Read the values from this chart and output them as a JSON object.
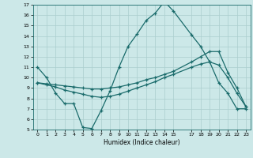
{
  "xlabel": "Humidex (Indice chaleur)",
  "bg_color": "#cce8e8",
  "line_color": "#1a6b6b",
  "grid_color": "#aacece",
  "ylim": [
    5,
    17
  ],
  "xlim": [
    -0.5,
    23.5
  ],
  "yticks": [
    5,
    6,
    7,
    8,
    9,
    10,
    11,
    12,
    13,
    14,
    15,
    16,
    17
  ],
  "xticks": [
    0,
    1,
    2,
    3,
    4,
    5,
    6,
    7,
    8,
    9,
    10,
    11,
    12,
    13,
    14,
    15,
    17,
    18,
    19,
    20,
    21,
    22,
    23
  ],
  "line1_x": [
    0,
    1,
    2,
    3,
    4,
    5,
    6,
    7,
    8,
    9,
    10,
    11,
    12,
    13,
    14,
    15,
    17,
    18,
    19,
    20,
    21,
    22,
    23
  ],
  "line1_y": [
    11.0,
    10.0,
    8.5,
    7.5,
    7.5,
    5.2,
    5.1,
    6.8,
    8.7,
    11.0,
    13.0,
    14.2,
    15.5,
    16.2,
    17.3,
    16.4,
    14.1,
    13.0,
    11.5,
    9.5,
    8.5,
    7.0,
    7.0
  ],
  "line2_x": [
    0,
    1,
    2,
    3,
    4,
    5,
    6,
    7,
    8,
    9,
    10,
    11,
    12,
    13,
    14,
    15,
    17,
    18,
    19,
    20,
    21,
    22,
    23
  ],
  "line2_y": [
    9.5,
    9.4,
    9.3,
    9.2,
    9.1,
    9.0,
    8.9,
    8.9,
    9.0,
    9.1,
    9.3,
    9.5,
    9.8,
    10.0,
    10.3,
    10.6,
    11.5,
    12.0,
    12.5,
    12.5,
    10.5,
    9.0,
    7.2
  ],
  "line3_x": [
    0,
    1,
    2,
    3,
    4,
    5,
    6,
    7,
    8,
    9,
    10,
    11,
    12,
    13,
    14,
    15,
    17,
    18,
    19,
    20,
    21,
    22,
    23
  ],
  "line3_y": [
    9.5,
    9.3,
    9.1,
    8.8,
    8.6,
    8.4,
    8.2,
    8.1,
    8.2,
    8.4,
    8.7,
    9.0,
    9.3,
    9.6,
    10.0,
    10.3,
    11.0,
    11.3,
    11.5,
    11.2,
    10.0,
    8.5,
    7.2
  ]
}
